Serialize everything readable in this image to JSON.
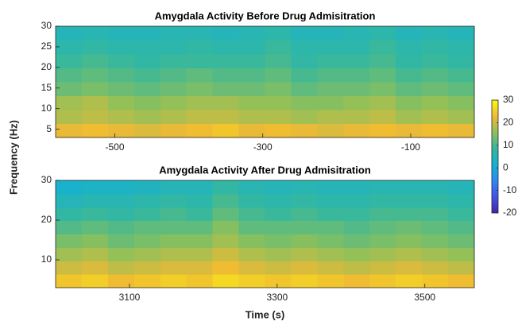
{
  "figure": {
    "ylabel": "Frequency (Hz)",
    "colormap": "parula"
  },
  "colorbar": {
    "clim": [
      -20,
      30
    ],
    "ticks": [
      30,
      20,
      10,
      0,
      -10,
      -20
    ]
  },
  "chart_data": [
    {
      "type": "heatmap",
      "title": "Amygdala Activity Before Drug Admisitration",
      "xlim": [
        -580,
        -14
      ],
      "xticks": [
        -500,
        -300,
        -100
      ],
      "ylim": [
        3,
        30
      ],
      "yticks": [
        5,
        10,
        15,
        20,
        25,
        30
      ],
      "z": [
        [
          22,
          23,
          22,
          21,
          22,
          23,
          24,
          22,
          23,
          22,
          21,
          22,
          23,
          22,
          23,
          22
        ],
        [
          18,
          19,
          18,
          17,
          18,
          19,
          19,
          18,
          18,
          17,
          18,
          18,
          19,
          17,
          18,
          17
        ],
        [
          17,
          18,
          16,
          15,
          16,
          17,
          17,
          16,
          16,
          15,
          15,
          16,
          17,
          15,
          16,
          15
        ],
        [
          13,
          14,
          13,
          12,
          13,
          14,
          13,
          13,
          14,
          12,
          13,
          13,
          14,
          12,
          13,
          12
        ],
        [
          11,
          12,
          11,
          10,
          11,
          12,
          11,
          11,
          12,
          10,
          11,
          11,
          12,
          10,
          11,
          10
        ],
        [
          9,
          10,
          9,
          8,
          9,
          9,
          9,
          9,
          10,
          8,
          9,
          9,
          10,
          8,
          9,
          8
        ],
        [
          7,
          8,
          7,
          7,
          7,
          8,
          7,
          7,
          9,
          7,
          7,
          7,
          9,
          7,
          8,
          7
        ],
        [
          5,
          6,
          5,
          5,
          6,
          6,
          5,
          6,
          7,
          5,
          5,
          6,
          7,
          5,
          6,
          5
        ]
      ]
    },
    {
      "type": "heatmap",
      "title": "Amygdala Activity After Drug Admisitration",
      "xlabel": "Time (s)",
      "xlim": [
        3000,
        3567
      ],
      "xticks": [
        3100,
        3300,
        3500
      ],
      "ylim": [
        3,
        30
      ],
      "yticks": [
        10,
        20,
        30
      ],
      "z": [
        [
          24,
          25,
          23,
          24,
          25,
          24,
          26,
          25,
          24,
          25,
          24,
          23,
          24,
          25,
          24,
          23
        ],
        [
          20,
          21,
          19,
          20,
          21,
          21,
          23,
          21,
          20,
          21,
          20,
          19,
          20,
          21,
          20,
          19
        ],
        [
          17,
          18,
          16,
          17,
          18,
          18,
          20,
          18,
          17,
          18,
          17,
          16,
          17,
          18,
          17,
          16
        ],
        [
          14,
          15,
          13,
          14,
          15,
          15,
          17,
          15,
          14,
          15,
          14,
          13,
          14,
          15,
          14,
          13
        ],
        [
          11,
          12,
          11,
          12,
          12,
          12,
          15,
          12,
          12,
          12,
          12,
          11,
          12,
          13,
          12,
          11
        ],
        [
          8,
          9,
          8,
          9,
          10,
          9,
          12,
          10,
          9,
          10,
          9,
          9,
          10,
          10,
          10,
          9
        ],
        [
          5,
          6,
          6,
          7,
          8,
          7,
          10,
          8,
          7,
          8,
          7,
          7,
          8,
          8,
          8,
          7
        ],
        [
          2,
          3,
          3,
          4,
          5,
          5,
          8,
          6,
          5,
          6,
          5,
          5,
          6,
          6,
          6,
          5
        ]
      ]
    }
  ]
}
